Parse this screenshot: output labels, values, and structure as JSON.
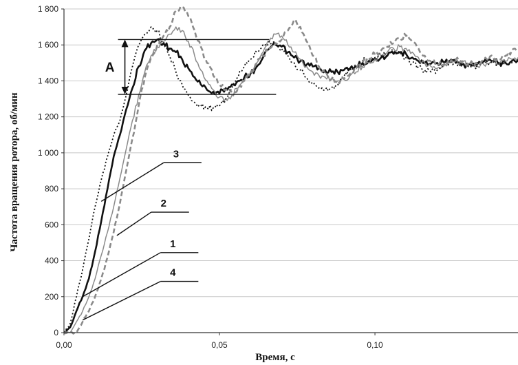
{
  "chart_data": {
    "type": "line",
    "xlabel": "Время, с",
    "ylabel": "Частота вращения ротора, об/мин",
    "xlim": [
      0,
      0.146
    ],
    "ylim": [
      0,
      1800
    ],
    "x_ticks": [
      0,
      0.05,
      0.1
    ],
    "x_tick_labels": [
      "0,00",
      "0,05",
      "0,10"
    ],
    "y_ticks": [
      0,
      200,
      400,
      600,
      800,
      1000,
      1200,
      1400,
      1600,
      1800
    ],
    "y_tick_labels": [
      "0",
      "200",
      "400",
      "600",
      "800",
      "1 000",
      "1 200",
      "1 400",
      "1 600",
      "1 800"
    ],
    "grid": "horizontal",
    "colors": {
      "curve_1": "#111111",
      "curve_2": "#8a8a8a",
      "curve_3": "#111111",
      "curve_4": "#8a8a8a",
      "grid": "#c8c8c8",
      "axis": "#333333"
    },
    "series": [
      {
        "name": "1",
        "style": "solid-bold",
        "x": [
          0,
          0.002,
          0.004,
          0.006,
          0.008,
          0.01,
          0.012,
          0.014,
          0.016,
          0.018,
          0.02,
          0.022,
          0.024,
          0.026,
          0.028,
          0.03,
          0.032,
          0.034,
          0.036,
          0.038,
          0.04,
          0.042,
          0.044,
          0.046,
          0.048,
          0.05,
          0.052,
          0.054,
          0.056,
          0.058,
          0.06,
          0.062,
          0.064,
          0.066,
          0.068,
          0.07,
          0.072,
          0.074,
          0.076,
          0.078,
          0.08,
          0.082,
          0.084,
          0.086,
          0.088,
          0.09,
          0.092,
          0.094,
          0.096,
          0.098,
          0.1,
          0.102,
          0.104,
          0.106,
          0.108,
          0.11,
          0.112,
          0.114,
          0.116,
          0.118,
          0.12,
          0.122,
          0.124,
          0.126,
          0.128,
          0.13,
          0.132,
          0.134,
          0.136,
          0.138,
          0.14,
          0.142,
          0.144,
          0.146
        ],
        "y": [
          0,
          30,
          120,
          200,
          300,
          450,
          620,
          800,
          980,
          1100,
          1240,
          1360,
          1480,
          1570,
          1610,
          1630,
          1610,
          1580,
          1560,
          1520,
          1470,
          1420,
          1380,
          1350,
          1340,
          1330,
          1360,
          1380,
          1400,
          1420,
          1440,
          1480,
          1530,
          1580,
          1600,
          1590,
          1560,
          1530,
          1510,
          1490,
          1480,
          1470,
          1460,
          1450,
          1450,
          1460,
          1470,
          1480,
          1500,
          1510,
          1520,
          1530,
          1540,
          1550,
          1560,
          1550,
          1530,
          1510,
          1500,
          1495,
          1500,
          1505,
          1510,
          1500,
          1490,
          1490,
          1495,
          1500,
          1510,
          1510,
          1500,
          1500,
          1510,
          1520
        ]
      },
      {
        "name": "2",
        "style": "solid-thin",
        "x": [
          0,
          0.002,
          0.004,
          0.006,
          0.008,
          0.01,
          0.012,
          0.014,
          0.016,
          0.018,
          0.02,
          0.022,
          0.024,
          0.026,
          0.028,
          0.03,
          0.032,
          0.034,
          0.036,
          0.038,
          0.04,
          0.042,
          0.044,
          0.046,
          0.048,
          0.05,
          0.052,
          0.054,
          0.056,
          0.058,
          0.06,
          0.062,
          0.064,
          0.066,
          0.068,
          0.07,
          0.072,
          0.074,
          0.076,
          0.078,
          0.08,
          0.082,
          0.084,
          0.086,
          0.088,
          0.09,
          0.092,
          0.094,
          0.096,
          0.098,
          0.1,
          0.102,
          0.104,
          0.106,
          0.108,
          0.11,
          0.112,
          0.114,
          0.116,
          0.118,
          0.12,
          0.122,
          0.124,
          0.126,
          0.128,
          0.13,
          0.132,
          0.134,
          0.136,
          0.138,
          0.14,
          0.142,
          0.144,
          0.146
        ],
        "y": [
          0,
          0,
          60,
          120,
          200,
          300,
          430,
          560,
          700,
          860,
          1020,
          1180,
          1320,
          1450,
          1540,
          1590,
          1620,
          1660,
          1700,
          1680,
          1620,
          1540,
          1460,
          1400,
          1350,
          1310,
          1300,
          1320,
          1360,
          1400,
          1450,
          1500,
          1560,
          1620,
          1660,
          1650,
          1600,
          1560,
          1520,
          1480,
          1450,
          1430,
          1420,
          1410,
          1400,
          1410,
          1430,
          1450,
          1480,
          1500,
          1520,
          1540,
          1560,
          1580,
          1590,
          1580,
          1560,
          1530,
          1500,
          1480,
          1470,
          1480,
          1500,
          1510,
          1500,
          1490,
          1480,
          1490,
          1500,
          1510,
          1500,
          1510,
          1520,
          1530
        ]
      },
      {
        "name": "3",
        "style": "dotted",
        "x": [
          0,
          0.002,
          0.004,
          0.006,
          0.008,
          0.01,
          0.012,
          0.014,
          0.016,
          0.018,
          0.02,
          0.022,
          0.024,
          0.026,
          0.028,
          0.03,
          0.032,
          0.034,
          0.036,
          0.038,
          0.04,
          0.042,
          0.044,
          0.046,
          0.048,
          0.05,
          0.052,
          0.054,
          0.056,
          0.058,
          0.06,
          0.062,
          0.064,
          0.066,
          0.068,
          0.07,
          0.072,
          0.074,
          0.076,
          0.078,
          0.08,
          0.082,
          0.084,
          0.086,
          0.088,
          0.09,
          0.092,
          0.094,
          0.096,
          0.098,
          0.1,
          0.102,
          0.104,
          0.106,
          0.108,
          0.11,
          0.112,
          0.114,
          0.116,
          0.118,
          0.12,
          0.122,
          0.124,
          0.126,
          0.128,
          0.13,
          0.132,
          0.134,
          0.136,
          0.138,
          0.14,
          0.142,
          0.144,
          0.146
        ],
        "y": [
          0,
          50,
          200,
          350,
          520,
          700,
          850,
          980,
          1100,
          1180,
          1320,
          1480,
          1600,
          1660,
          1700,
          1680,
          1620,
          1540,
          1450,
          1380,
          1320,
          1280,
          1260,
          1250,
          1250,
          1260,
          1300,
          1360,
          1420,
          1480,
          1520,
          1560,
          1600,
          1620,
          1610,
          1580,
          1540,
          1500,
          1460,
          1420,
          1380,
          1360,
          1350,
          1360,
          1380,
          1420,
          1460,
          1490,
          1510,
          1520,
          1530,
          1540,
          1550,
          1560,
          1550,
          1530,
          1500,
          1480,
          1460,
          1450,
          1460,
          1480,
          1500,
          1500,
          1490,
          1480,
          1480,
          1490,
          1500,
          1500,
          1490,
          1490,
          1500,
          1510
        ]
      },
      {
        "name": "4",
        "style": "dashed",
        "x": [
          0,
          0.002,
          0.004,
          0.006,
          0.008,
          0.01,
          0.012,
          0.014,
          0.016,
          0.018,
          0.02,
          0.022,
          0.024,
          0.026,
          0.028,
          0.03,
          0.032,
          0.034,
          0.036,
          0.038,
          0.04,
          0.042,
          0.044,
          0.046,
          0.048,
          0.05,
          0.052,
          0.054,
          0.056,
          0.058,
          0.06,
          0.062,
          0.064,
          0.066,
          0.068,
          0.07,
          0.072,
          0.074,
          0.076,
          0.078,
          0.08,
          0.082,
          0.084,
          0.086,
          0.088,
          0.09,
          0.092,
          0.094,
          0.096,
          0.098,
          0.1,
          0.102,
          0.104,
          0.106,
          0.108,
          0.11,
          0.112,
          0.114,
          0.116,
          0.118,
          0.12,
          0.122,
          0.124,
          0.126,
          0.128,
          0.13,
          0.132,
          0.134,
          0.136,
          0.138,
          0.14,
          0.142,
          0.144,
          0.146
        ],
        "y": [
          0,
          0,
          0,
          60,
          120,
          200,
          300,
          420,
          560,
          720,
          900,
          1080,
          1260,
          1420,
          1530,
          1600,
          1650,
          1700,
          1790,
          1810,
          1760,
          1680,
          1590,
          1500,
          1430,
          1380,
          1350,
          1340,
          1360,
          1400,
          1450,
          1500,
          1540,
          1580,
          1610,
          1630,
          1680,
          1740,
          1700,
          1620,
          1540,
          1480,
          1440,
          1410,
          1400,
          1410,
          1440,
          1470,
          1500,
          1530,
          1550,
          1570,
          1590,
          1610,
          1640,
          1650,
          1620,
          1580,
          1540,
          1510,
          1490,
          1490,
          1500,
          1520,
          1510,
          1500,
          1490,
          1500,
          1520,
          1530,
          1520,
          1540,
          1570,
          1560
        ]
      }
    ],
    "annotations": [
      {
        "text": "A",
        "type": "amplitude",
        "y_from": 1325,
        "y_to": 1630,
        "x_from": 0.003,
        "x_to": 0.066
      },
      {
        "text": "3",
        "type": "callout",
        "curve_point": [
          0.012,
          730
        ],
        "label_anchor": [
          0.042,
          945
        ]
      },
      {
        "text": "2",
        "type": "callout",
        "curve_point": [
          0.017,
          540
        ],
        "label_anchor": [
          0.038,
          670
        ]
      },
      {
        "text": "1",
        "type": "callout",
        "curve_point": [
          0.006,
          200
        ],
        "label_anchor": [
          0.041,
          445
        ]
      },
      {
        "text": "4",
        "type": "callout",
        "curve_point": [
          0.006,
          70
        ],
        "label_anchor": [
          0.041,
          285
        ]
      }
    ]
  }
}
